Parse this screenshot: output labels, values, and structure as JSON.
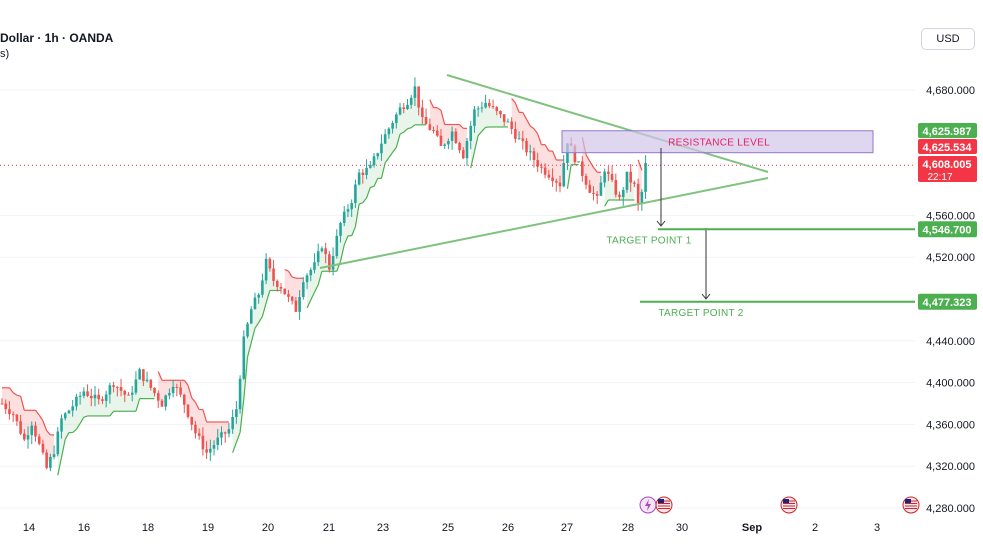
{
  "header": {
    "symbol_title": "Dollar · 1h · OANDA",
    "sub": "s)"
  },
  "currency_button": "USD",
  "colors": {
    "up": "#26a69a",
    "down": "#ef5350",
    "trend_line": "#7ec27e",
    "st_up": "#4caf50",
    "st_down": "#ef5350",
    "resistance_fill": "#d1c4e9",
    "resistance_border": "#9575cd",
    "resistance_text": "#e91e63",
    "target": "#4caf50",
    "price_tag_green": "#4caf50",
    "price_tag_red": "#f23645"
  },
  "chart_data": {
    "type": "candlestick",
    "y_ticks": [
      "4,680.000",
      "4,560.000",
      "4,520.000",
      "4,440.000",
      "4,400.000",
      "4,360.000",
      "4,320.000",
      "4,280.000"
    ],
    "x_ticks": [
      "14",
      "16",
      "18",
      "19",
      "20",
      "21",
      "23",
      "25",
      "26",
      "27",
      "28",
      "30",
      "Sep",
      "2",
      "3"
    ],
    "resistance": {
      "label": "RESISTANCE LEVEL",
      "from": 4620,
      "to": 4641
    },
    "targets": [
      {
        "label": "TARGET POINT 1",
        "price": 4546.7,
        "price_label": "4,546.700"
      },
      {
        "label": "TARGET POINT 2",
        "price": 4477.323,
        "price_label": "4,477.323"
      }
    ],
    "price_tags": [
      {
        "label": "4,625.987",
        "kind": "green"
      },
      {
        "label": "4,625.534",
        "kind": "red"
      },
      {
        "label": "4,608.005",
        "sub": "22:17",
        "kind": "red"
      }
    ],
    "current_price": 4608.005,
    "ohlc_path": [
      [
        0,
        4380
      ],
      [
        3,
        4370
      ],
      [
        6,
        4345
      ],
      [
        8,
        4362
      ],
      [
        10,
        4340
      ],
      [
        12,
        4318
      ],
      [
        14,
        4335
      ],
      [
        16,
        4365
      ],
      [
        19,
        4378
      ],
      [
        22,
        4392
      ],
      [
        26,
        4382
      ],
      [
        30,
        4400
      ],
      [
        34,
        4385
      ],
      [
        37,
        4410
      ],
      [
        40,
        4395
      ],
      [
        43,
        4380
      ],
      [
        46,
        4400
      ],
      [
        49,
        4380
      ],
      [
        52,
        4352
      ],
      [
        55,
        4333
      ],
      [
        58,
        4345
      ],
      [
        61,
        4355
      ],
      [
        63,
        4375
      ],
      [
        65,
        4440
      ],
      [
        67,
        4470
      ],
      [
        69,
        4485
      ],
      [
        71,
        4515
      ],
      [
        73,
        4498
      ],
      [
        75,
        4492
      ],
      [
        77,
        4480
      ],
      [
        79,
        4470
      ],
      [
        81,
        4500
      ],
      [
        84,
        4512
      ],
      [
        86,
        4532
      ],
      [
        88,
        4510
      ],
      [
        91,
        4552
      ],
      [
        94,
        4575
      ],
      [
        96,
        4600
      ],
      [
        99,
        4605
      ],
      [
        102,
        4630
      ],
      [
        105,
        4650
      ],
      [
        107,
        4662
      ],
      [
        109,
        4670
      ],
      [
        111,
        4682
      ],
      [
        113,
        4650
      ],
      [
        116,
        4640
      ],
      [
        118,
        4625
      ],
      [
        121,
        4640
      ],
      [
        124,
        4618
      ],
      [
        127,
        4660
      ],
      [
        130,
        4668
      ],
      [
        133,
        4658
      ],
      [
        136,
        4648
      ],
      [
        139,
        4632
      ],
      [
        142,
        4618
      ],
      [
        145,
        4605
      ],
      [
        148,
        4597
      ],
      [
        150,
        4590
      ],
      [
        152,
        4632
      ],
      [
        154,
        4615
      ],
      [
        156,
        4600
      ],
      [
        158,
        4585
      ],
      [
        160,
        4575
      ],
      [
        162,
        4605
      ],
      [
        164,
        4590
      ],
      [
        166,
        4575
      ],
      [
        168,
        4598
      ],
      [
        170,
        4588
      ],
      [
        171,
        4570
      ],
      [
        172,
        4582
      ],
      [
        173,
        4608
      ]
    ]
  }
}
